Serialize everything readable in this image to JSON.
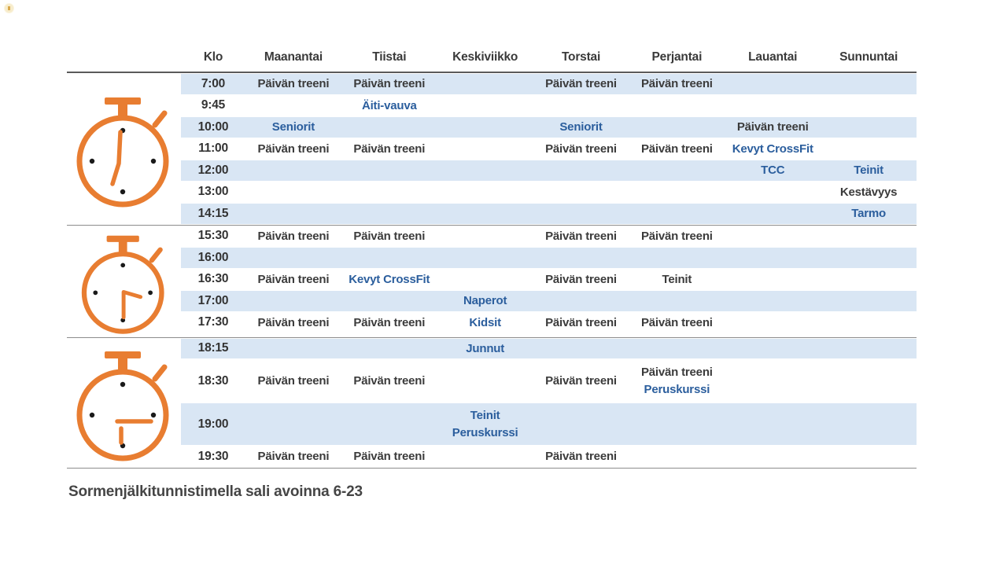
{
  "colors": {
    "accent_orange": "#E87D31",
    "stripe_blue": "#D9E6F4",
    "highlight_blue": "#2B5E9D",
    "text_dark": "#3B3B3B"
  },
  "schedule": {
    "columns": [
      "Klo",
      "Maanantai",
      "Tiistai",
      "Keskiviikko",
      "Torstai",
      "Perjantai",
      "Lauantai",
      "Sunnuntai"
    ],
    "sections": [
      {
        "name": "morning",
        "rows": [
          {
            "time": "7:00",
            "shaded": true,
            "cells": [
              [
                {
                  "text": "Päivän treeni",
                  "color": "dark"
                }
              ],
              [
                {
                  "text": "Päivän treeni",
                  "color": "dark"
                }
              ],
              [],
              [
                {
                  "text": "Päivän treeni",
                  "color": "dark"
                }
              ],
              [
                {
                  "text": "Päivän treeni",
                  "color": "dark"
                }
              ],
              [],
              []
            ]
          },
          {
            "time": "9:45",
            "shaded": false,
            "cells": [
              [],
              [
                {
                  "text": "Äiti-vauva",
                  "color": "blue"
                }
              ],
              [],
              [],
              [],
              [],
              []
            ]
          },
          {
            "time": "10:00",
            "shaded": true,
            "cells": [
              [
                {
                  "text": "Seniorit",
                  "color": "blue"
                }
              ],
              [],
              [],
              [
                {
                  "text": "Seniorit",
                  "color": "blue"
                }
              ],
              [],
              [
                {
                  "text": "Päivän treeni",
                  "color": "dark"
                }
              ],
              []
            ]
          },
          {
            "time": "11:00",
            "shaded": false,
            "cells": [
              [
                {
                  "text": "Päivän treeni",
                  "color": "dark"
                }
              ],
              [
                {
                  "text": "Päivän treeni",
                  "color": "dark"
                }
              ],
              [],
              [
                {
                  "text": "Päivän treeni",
                  "color": "dark"
                }
              ],
              [
                {
                  "text": "Päivän treeni",
                  "color": "dark"
                }
              ],
              [
                {
                  "text": "Kevyt CrossFit",
                  "color": "blue"
                }
              ],
              []
            ]
          },
          {
            "time": "12:00",
            "shaded": true,
            "cells": [
              [],
              [],
              [],
              [],
              [],
              [
                {
                  "text": "TCC",
                  "color": "blue"
                }
              ],
              [
                {
                  "text": "Teinit",
                  "color": "blue"
                }
              ]
            ]
          },
          {
            "time": "13:00",
            "shaded": false,
            "cells": [
              [],
              [],
              [],
              [],
              [],
              [],
              [
                {
                  "text": "Kestävyys",
                  "color": "dark"
                }
              ]
            ]
          },
          {
            "time": "14:15",
            "shaded": true,
            "cells": [
              [],
              [],
              [],
              [],
              [],
              [],
              [
                {
                  "text": "Tarmo",
                  "color": "blue"
                }
              ]
            ]
          }
        ]
      },
      {
        "name": "afternoon",
        "rows": [
          {
            "time": "15:30",
            "shaded": false,
            "cells": [
              [
                {
                  "text": "Päivän treeni",
                  "color": "dark"
                }
              ],
              [
                {
                  "text": "Päivän treeni",
                  "color": "dark"
                }
              ],
              [],
              [
                {
                  "text": "Päivän treeni",
                  "color": "dark"
                }
              ],
              [
                {
                  "text": "Päivän treeni",
                  "color": "dark"
                }
              ],
              [],
              []
            ]
          },
          {
            "time": "16:00",
            "shaded": true,
            "cells": [
              [],
              [],
              [],
              [],
              [],
              [],
              []
            ]
          },
          {
            "time": "16:30",
            "shaded": false,
            "cells": [
              [
                {
                  "text": "Päivän treeni",
                  "color": "dark"
                }
              ],
              [
                {
                  "text": "Kevyt CrossFit",
                  "color": "blue"
                }
              ],
              [],
              [
                {
                  "text": "Päivän treeni",
                  "color": "dark"
                }
              ],
              [
                {
                  "text": "Teinit",
                  "color": "dark"
                }
              ],
              [],
              []
            ]
          },
          {
            "time": "17:00",
            "shaded": true,
            "cells": [
              [],
              [],
              [
                {
                  "text": "Naperot",
                  "color": "blue"
                }
              ],
              [],
              [],
              [],
              []
            ]
          },
          {
            "time": "17:30",
            "shaded": false,
            "cells": [
              [
                {
                  "text": "Päivän treeni",
                  "color": "dark"
                }
              ],
              [
                {
                  "text": "Päivän treeni",
                  "color": "dark"
                }
              ],
              [
                {
                  "text": "Kidsit",
                  "color": "blue"
                }
              ],
              [
                {
                  "text": "Päivän treeni",
                  "color": "dark"
                }
              ],
              [
                {
                  "text": "Päivän treeni",
                  "color": "dark"
                }
              ],
              [],
              []
            ]
          }
        ]
      },
      {
        "name": "evening",
        "rows": [
          {
            "time": "18:15",
            "shaded": true,
            "cells": [
              [],
              [],
              [
                {
                  "text": "Junnut",
                  "color": "blue"
                }
              ],
              [],
              [],
              [],
              []
            ]
          },
          {
            "time": "18:30",
            "shaded": false,
            "tall": true,
            "cells": [
              [
                {
                  "text": "Päivän treeni",
                  "color": "dark"
                }
              ],
              [
                {
                  "text": "Päivän treeni",
                  "color": "dark"
                }
              ],
              [],
              [
                {
                  "text": "Päivän treeni",
                  "color": "dark"
                }
              ],
              [
                {
                  "text": "Päivän treeni",
                  "color": "dark"
                },
                {
                  "text": "Peruskurssi",
                  "color": "blue"
                }
              ],
              [],
              []
            ]
          },
          {
            "time": "19:00",
            "shaded": true,
            "tall": true,
            "cells": [
              [],
              [],
              [
                {
                  "text": "Teinit",
                  "color": "blue"
                },
                {
                  "text": "Peruskurssi",
                  "color": "blue"
                }
              ],
              [],
              [],
              [],
              []
            ]
          },
          {
            "time": "19:30",
            "shaded": false,
            "cells": [
              [
                {
                  "text": "Päivän treeni",
                  "color": "dark"
                }
              ],
              [
                {
                  "text": "Päivän treeni",
                  "color": "dark"
                }
              ],
              [],
              [
                {
                  "text": "Päivän treeni",
                  "color": "dark"
                }
              ],
              [],
              [],
              []
            ]
          }
        ]
      }
    ]
  },
  "footer": {
    "text": "Sormenjälkitunnistimella sali avoinna 6-23"
  }
}
